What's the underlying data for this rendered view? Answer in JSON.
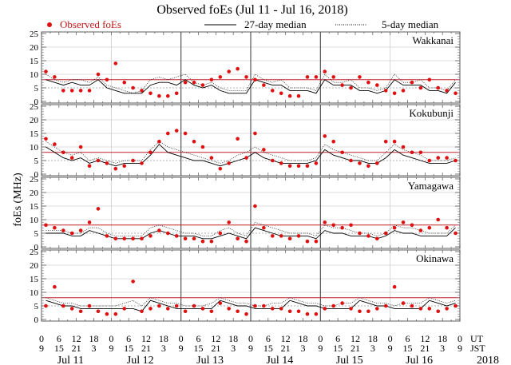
{
  "chart_data": {
    "type": "scatter",
    "title": "Observed foEs (Jul 11 - Jul 16, 2018)",
    "ylabel": "foEs (MHz)",
    "ylim": [
      0,
      25
    ],
    "yticks": [
      0,
      5,
      10,
      15,
      20,
      25
    ],
    "xlim_hours": [
      0,
      144
    ],
    "x_tick_hours": [
      0,
      6,
      12,
      18,
      24,
      30,
      36,
      42,
      48,
      54,
      60,
      66,
      72,
      78,
      84,
      90,
      96,
      102,
      108,
      114,
      120,
      126,
      132,
      138,
      144
    ],
    "x_tick_ut": [
      "0",
      "6",
      "12",
      "18",
      "0",
      "6",
      "12",
      "18",
      "0",
      "6",
      "12",
      "18",
      "0",
      "6",
      "12",
      "18",
      "0",
      "6",
      "12",
      "18",
      "0",
      "6",
      "12",
      "18",
      "0"
    ],
    "x_tick_jst": [
      "9",
      "15",
      "21",
      "3",
      "9",
      "15",
      "21",
      "3",
      "9",
      "15",
      "21",
      "3",
      "9",
      "15",
      "21",
      "3",
      "9",
      "15",
      "21",
      "3",
      "9",
      "15",
      "21",
      "3",
      "9"
    ],
    "ut_label": "UT",
    "jst_label": "JST",
    "day_labels": [
      "Jul 11",
      "Jul 12",
      "Jul 13",
      "Jul 14",
      "Jul 15",
      "Jul 16"
    ],
    "year_label": "2018",
    "reference_line_mhz": 8,
    "legend": {
      "position": "top",
      "entries": [
        {
          "label": "Observed foEs",
          "style": "red-dot"
        },
        {
          "label": "27-day median",
          "style": "solid-line"
        },
        {
          "label": "5-day median",
          "style": "dotted-line"
        }
      ]
    },
    "colors": {
      "observed": "#e01010",
      "reference": "#c0202a",
      "median": "#000000",
      "grid": "#cccccc"
    },
    "x_step_hours": 3,
    "panels": [
      {
        "station": "Wakkanai",
        "observed": [
          11,
          9,
          4,
          4,
          4,
          4,
          10,
          8,
          14,
          7,
          5,
          4,
          3,
          2,
          2,
          3,
          7,
          7,
          6,
          8,
          9,
          11,
          12,
          9,
          8,
          6,
          4,
          3,
          2,
          2,
          9,
          9,
          11,
          9,
          6,
          5,
          9,
          7,
          6,
          4,
          3,
          4,
          7,
          5,
          8,
          5,
          4,
          3
        ],
        "median27": [
          8,
          7,
          6,
          7,
          6,
          6,
          8,
          5,
          4,
          3,
          3,
          3,
          6,
          7,
          7,
          6,
          8,
          6,
          5,
          6,
          4,
          3,
          3,
          3,
          8,
          7,
          6,
          6,
          4,
          4,
          4,
          3,
          8,
          6,
          6,
          6,
          4,
          4,
          3,
          4,
          8,
          6,
          6,
          6,
          4,
          4,
          3,
          7
        ],
        "median5": [
          10,
          8,
          7,
          8,
          8,
          7,
          9,
          6,
          5,
          4,
          3,
          4,
          8,
          9,
          8,
          9,
          10,
          7,
          6,
          7,
          5,
          4,
          4,
          4,
          10,
          8,
          7,
          8,
          5,
          5,
          5,
          4,
          10,
          7,
          7,
          8,
          5,
          5,
          4,
          5,
          10,
          7,
          7,
          8,
          5,
          5,
          4,
          8
        ]
      },
      {
        "station": "Kokubunji",
        "observed": [
          13,
          11,
          8,
          6,
          10,
          3,
          5,
          4,
          2,
          3,
          5,
          4,
          8,
          12,
          15,
          16,
          15,
          12,
          10,
          6,
          2,
          4,
          13,
          6,
          15,
          9,
          5,
          4,
          3,
          3,
          3,
          4,
          14,
          12,
          8,
          5,
          4,
          3,
          4,
          12,
          12,
          10,
          8,
          8,
          5,
          6,
          6,
          5
        ],
        "median27": [
          10,
          8,
          6,
          5,
          6,
          4,
          5,
          4,
          3,
          4,
          4,
          4,
          7,
          11,
          8,
          7,
          6,
          5,
          5,
          4,
          3,
          4,
          5,
          6,
          8,
          6,
          5,
          4,
          4,
          4,
          4,
          5,
          9,
          7,
          6,
          5,
          5,
          4,
          4,
          6,
          9,
          7,
          6,
          5,
          4,
          4,
          4,
          5
        ],
        "median5": [
          12,
          10,
          8,
          7,
          8,
          5,
          6,
          5,
          4,
          5,
          5,
          5,
          9,
          12,
          10,
          9,
          8,
          7,
          6,
          5,
          4,
          5,
          7,
          8,
          10,
          8,
          7,
          6,
          5,
          5,
          5,
          6,
          11,
          9,
          8,
          7,
          6,
          5,
          5,
          8,
          11,
          9,
          8,
          7,
          5,
          5,
          5,
          6
        ]
      },
      {
        "station": "Yamagawa",
        "observed": [
          8,
          7,
          6,
          5,
          6,
          9,
          14,
          4,
          3,
          3,
          3,
          3,
          4,
          6,
          5,
          4,
          3,
          3,
          2,
          2,
          5,
          9,
          3,
          2,
          15,
          7,
          4,
          4,
          3,
          4,
          2,
          2,
          9,
          8,
          7,
          8,
          5,
          4,
          3,
          5,
          7,
          9,
          8,
          6,
          7,
          10,
          7,
          5
        ],
        "median27": [
          5,
          5,
          5,
          4,
          4,
          6,
          5,
          4,
          3,
          3,
          3,
          3,
          5,
          6,
          5,
          4,
          4,
          4,
          3,
          3,
          4,
          5,
          4,
          3,
          7,
          6,
          5,
          4,
          4,
          4,
          4,
          3,
          6,
          5,
          5,
          4,
          4,
          4,
          3,
          4,
          6,
          5,
          5,
          4,
          4,
          4,
          4,
          7
        ],
        "median5": [
          6,
          6,
          6,
          5,
          5,
          7,
          7,
          5,
          4,
          4,
          4,
          4,
          7,
          8,
          7,
          6,
          5,
          5,
          4,
          4,
          6,
          7,
          5,
          4,
          9,
          8,
          7,
          6,
          5,
          5,
          5,
          4,
          8,
          7,
          7,
          6,
          5,
          5,
          4,
          5,
          8,
          7,
          7,
          6,
          5,
          5,
          5,
          8
        ]
      },
      {
        "station": "Okinawa",
        "observed": [
          5,
          12,
          5,
          4,
          3,
          5,
          3,
          2,
          2,
          4,
          14,
          3,
          4,
          5,
          4,
          5,
          3,
          5,
          4,
          3,
          6,
          4,
          3,
          2,
          5,
          5,
          4,
          4,
          3,
          3,
          2,
          2,
          4,
          5,
          6,
          4,
          3,
          3,
          4,
          5,
          12,
          6,
          5,
          4,
          4,
          3,
          4,
          5
        ],
        "median27": [
          7,
          6,
          5,
          5,
          4,
          4,
          4,
          4,
          4,
          4,
          4,
          3,
          7,
          6,
          5,
          4,
          4,
          4,
          4,
          4,
          7,
          6,
          5,
          5,
          4,
          4,
          4,
          4,
          7,
          6,
          5,
          5,
          4,
          4,
          4,
          4,
          7,
          6,
          5,
          5,
          4,
          4,
          4,
          4,
          7,
          6,
          5,
          6
        ],
        "median5": [
          8,
          7,
          6,
          6,
          5,
          5,
          5,
          5,
          5,
          6,
          7,
          5,
          8,
          7,
          6,
          6,
          5,
          5,
          5,
          6,
          8,
          7,
          6,
          6,
          5,
          5,
          6,
          6,
          8,
          7,
          6,
          6,
          5,
          5,
          6,
          6,
          8,
          7,
          6,
          6,
          5,
          6,
          6,
          6,
          8,
          7,
          6,
          7
        ]
      }
    ]
  }
}
